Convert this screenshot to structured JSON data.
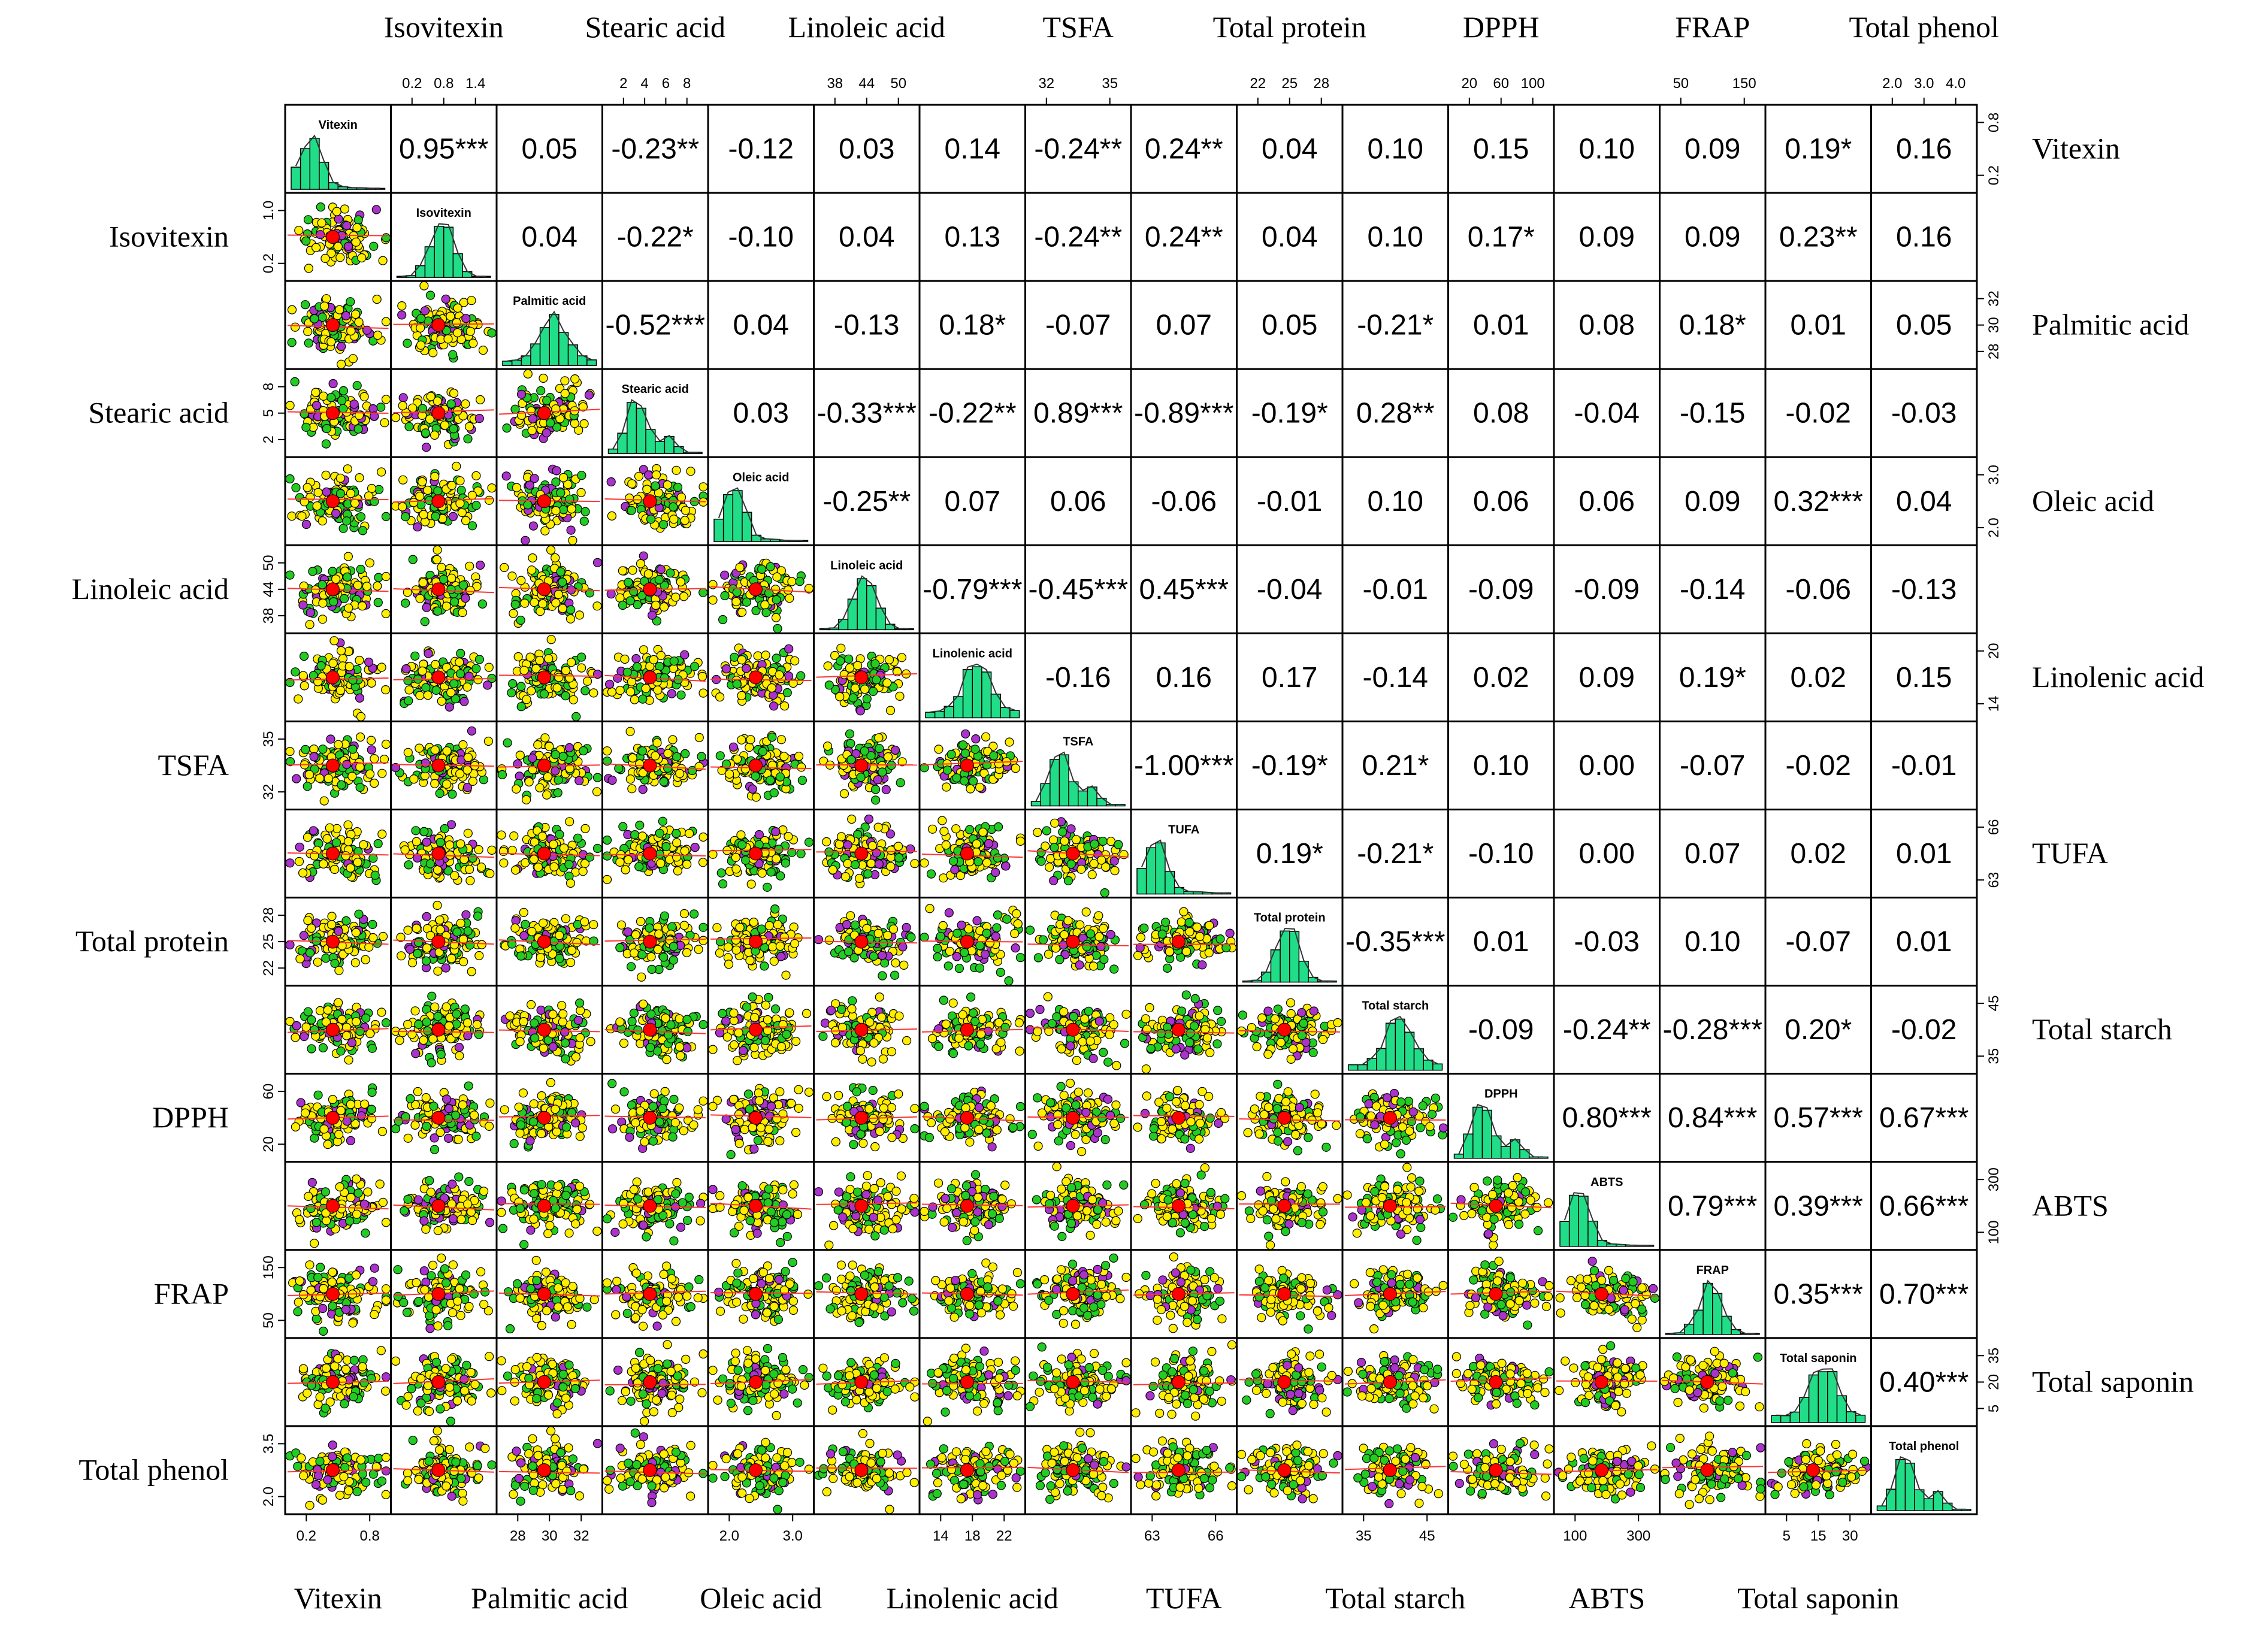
{
  "chart_data": {
    "type": "scatter",
    "variables": [
      "Vitexin",
      "Isovitexin",
      "Palmitic acid",
      "Stearic acid",
      "Oleic acid",
      "Linoleic acid",
      "Linolenic acid",
      "TSFA",
      "TUFA",
      "Total protein",
      "Total starch",
      "DPPH",
      "ABTS",
      "FRAP",
      "Total saponin",
      "Total phenol"
    ],
    "panel_titles": [
      "Vitexin",
      "Isovitexin",
      "Palmitic acid",
      "Stearic acid",
      "Oleic acid",
      "Linoleic acid",
      "Linolenic acid",
      "TSFA",
      "TUFA",
      "Total protein",
      "Total starch",
      "DPPH",
      "ABTS",
      "FRAP",
      "Total saponin",
      "Total phenol"
    ],
    "correlation_matrix_upper": [
      [
        "0.95***",
        "0.05",
        "-0.23**",
        "-0.12",
        "0.03",
        "0.14",
        "-0.24**",
        "0.24**",
        "0.04",
        "0.10",
        "0.15",
        "0.10",
        "0.09",
        "0.19*",
        "0.16"
      ],
      [
        "0.04",
        "-0.22*",
        "-0.10",
        "0.04",
        "0.13",
        "-0.24**",
        "0.24**",
        "0.04",
        "0.10",
        "0.17*",
        "0.09",
        "0.09",
        "0.23**",
        "0.16"
      ],
      [
        "-0.52***",
        "0.04",
        "-0.13",
        "0.18*",
        "-0.07",
        "0.07",
        "0.05",
        "-0.21*",
        "0.01",
        "0.08",
        "0.18*",
        "0.01",
        "0.05"
      ],
      [
        "0.03",
        "-0.33***",
        "-0.22**",
        "0.89***",
        "-0.89***",
        "-0.19*",
        "0.28**",
        "0.08",
        "-0.04",
        "-0.15",
        "-0.02",
        "-0.03"
      ],
      [
        "-0.25**",
        "0.07",
        "0.06",
        "-0.06",
        "-0.01",
        "0.10",
        "0.06",
        "0.06",
        "0.09",
        "0.32***",
        "0.04"
      ],
      [
        "-0.79***",
        "-0.45***",
        "0.45***",
        "-0.04",
        "-0.01",
        "-0.09",
        "-0.09",
        "-0.14",
        "-0.06",
        "-0.13"
      ],
      [
        "-0.16",
        "0.16",
        "0.17",
        "-0.14",
        "0.02",
        "0.09",
        "0.19*",
        "0.02",
        "0.15"
      ],
      [
        "-1.00***",
        "-0.19*",
        "0.21*",
        "0.10",
        "0.00",
        "-0.07",
        "-0.02",
        "-0.01"
      ],
      [
        "0.19*",
        "-0.21*",
        "-0.10",
        "0.00",
        "0.07",
        "0.02",
        "0.01"
      ],
      [
        "-0.35***",
        "0.01",
        "-0.03",
        "0.10",
        "-0.07",
        "0.01"
      ],
      [
        "-0.09",
        "-0.24**",
        "-0.28***",
        "0.20*",
        "-0.02"
      ],
      [
        "0.80***",
        "0.84***",
        "0.57***",
        "0.67***"
      ],
      [
        "0.79***",
        "0.39***",
        "0.66***"
      ],
      [
        "0.35***",
        "0.70***"
      ],
      [
        "0.40***"
      ]
    ],
    "axis_ticks": [
      [
        "0.2",
        "0.8"
      ],
      [
        "0.2",
        "0.8",
        "1.4"
      ],
      [
        "28",
        "30",
        "32"
      ],
      [
        "2",
        "4",
        "6",
        "8"
      ],
      [
        "2.0",
        "3.0"
      ],
      [
        "38",
        "44",
        "50"
      ],
      [
        "14",
        "18",
        "22"
      ],
      [
        "32",
        "35"
      ],
      [
        "63",
        "66"
      ],
      [
        "22",
        "25",
        "28"
      ],
      [
        "35",
        "45"
      ],
      [
        "20",
        "60",
        "100"
      ],
      [
        "100",
        "300"
      ],
      [
        "50",
        "150"
      ],
      [
        "5",
        "15",
        "30"
      ],
      [
        "2.0",
        "3.0",
        "4.0"
      ]
    ],
    "left_axis_ticks": [
      null,
      [
        "0.2",
        "1.0"
      ],
      null,
      [
        "2",
        "5",
        "8"
      ],
      null,
      [
        "38",
        "44",
        "50"
      ],
      null,
      [
        "32",
        "35"
      ],
      null,
      [
        "22",
        "25",
        "28"
      ],
      null,
      [
        "20",
        "60"
      ],
      null,
      [
        "50",
        "150"
      ],
      null,
      [
        "2.0",
        "3.5"
      ]
    ],
    "right_axis_ticks": [
      [
        "0.2",
        "0.8"
      ],
      null,
      [
        "28",
        "30",
        "32"
      ],
      null,
      [
        "2.0",
        "3.0"
      ],
      null,
      [
        "14",
        "20"
      ],
      null,
      [
        "63",
        "66"
      ],
      null,
      [
        "35",
        "45"
      ],
      null,
      [
        "100",
        "300"
      ],
      null,
      [
        "5",
        "20",
        "35"
      ],
      null
    ],
    "group_colors": [
      "#ffee00",
      "#22cc22",
      "#aa33cc"
    ],
    "histogram_fill": "#22dd88",
    "smooth_line_color": "#ff3333",
    "mean_point_color": "#ff0000"
  }
}
